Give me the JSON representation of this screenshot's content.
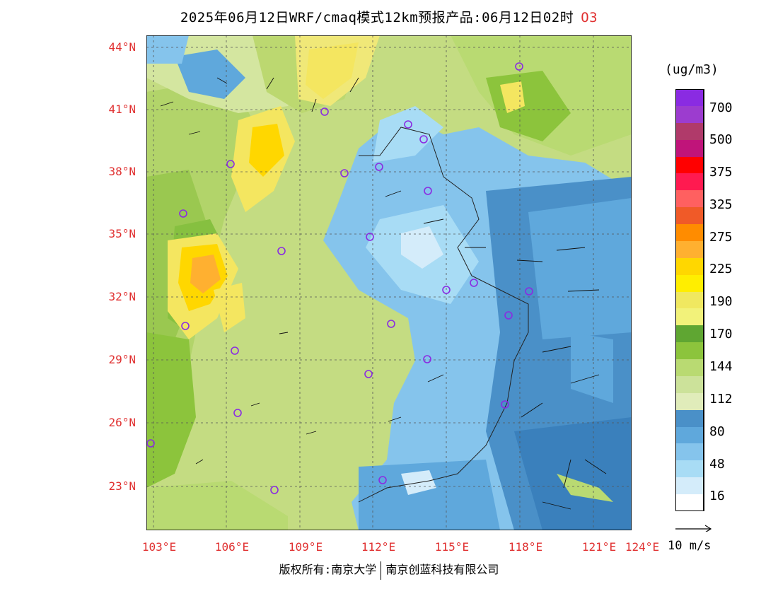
{
  "title": {
    "text": "2025年06月12日WRF/cmaq模式12km预报产品:06月12日02时",
    "pollutant": "O3"
  },
  "legend": {
    "unit": "(ug/m3)",
    "labels": [
      "700",
      "500",
      "375",
      "325",
      "275",
      "225",
      "190",
      "170",
      "144",
      "112",
      "80",
      "48",
      "16"
    ],
    "colors": [
      "#8a2be2",
      "#9c3ccf",
      "#b03a6a",
      "#c0147a",
      "#ff0000",
      "#ff1a50",
      "#ff6060",
      "#f05a28",
      "#ff8c00",
      "#ffb030",
      "#ffd700",
      "#ffee00",
      "#f0e860",
      "#f2f27a",
      "#5fa632",
      "#8cc43c",
      "#b9da72",
      "#cce29a",
      "#e0ecba",
      "#4a90c8",
      "#5fa8dc",
      "#85c4ec",
      "#a8dcf5",
      "#d4ecfa",
      "#ffffff"
    ]
  },
  "axes": {
    "lat_labels": [
      "44°N",
      "41°N",
      "38°N",
      "35°N",
      "32°N",
      "29°N",
      "26°N",
      "23°N"
    ],
    "lon_labels": [
      "103°E",
      "106°E",
      "109°E",
      "112°E",
      "115°E",
      "118°E",
      "121°E",
      "124°E"
    ]
  },
  "wind": {
    "reference_label": "10 m/s"
  },
  "footer": {
    "left": "版权所有:南京大学",
    "right": "南京创蓝科技有限公司"
  }
}
